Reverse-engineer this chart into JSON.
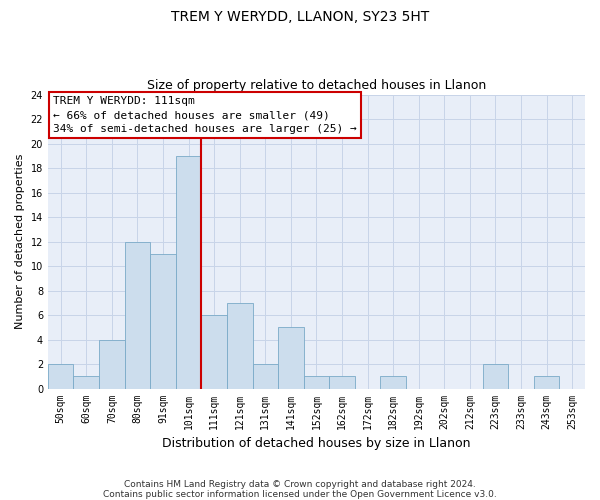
{
  "title": "TREM Y WERYDD, LLANON, SY23 5HT",
  "subtitle": "Size of property relative to detached houses in Llanon",
  "xlabel": "Distribution of detached houses by size in Llanon",
  "ylabel": "Number of detached properties",
  "categories": [
    "50sqm",
    "60sqm",
    "70sqm",
    "80sqm",
    "91sqm",
    "101sqm",
    "111sqm",
    "121sqm",
    "131sqm",
    "141sqm",
    "152sqm",
    "162sqm",
    "172sqm",
    "182sqm",
    "192sqm",
    "202sqm",
    "212sqm",
    "223sqm",
    "233sqm",
    "243sqm",
    "253sqm"
  ],
  "values": [
    2,
    1,
    4,
    12,
    11,
    19,
    6,
    7,
    2,
    5,
    1,
    1,
    0,
    1,
    0,
    0,
    0,
    2,
    0,
    1,
    0
  ],
  "bar_color": "#ccdded",
  "bar_edge_color": "#7aaac8",
  "vline_x_index": 6,
  "vline_color": "#cc0000",
  "annotation_box_color": "#cc0000",
  "annotation_lines": [
    "TREM Y WERYDD: 111sqm",
    "← 66% of detached houses are smaller (49)",
    "34% of semi-detached houses are larger (25) →"
  ],
  "ylim": [
    0,
    24
  ],
  "yticks": [
    0,
    2,
    4,
    6,
    8,
    10,
    12,
    14,
    16,
    18,
    20,
    22,
    24
  ],
  "grid_color": "#c8d4e8",
  "background_color": "#e8eef8",
  "footnote": "Contains HM Land Registry data © Crown copyright and database right 2024.\nContains public sector information licensed under the Open Government Licence v3.0.",
  "title_fontsize": 10,
  "subtitle_fontsize": 9,
  "xlabel_fontsize": 9,
  "ylabel_fontsize": 8,
  "tick_fontsize": 7,
  "annotation_fontsize": 8,
  "footnote_fontsize": 6.5
}
